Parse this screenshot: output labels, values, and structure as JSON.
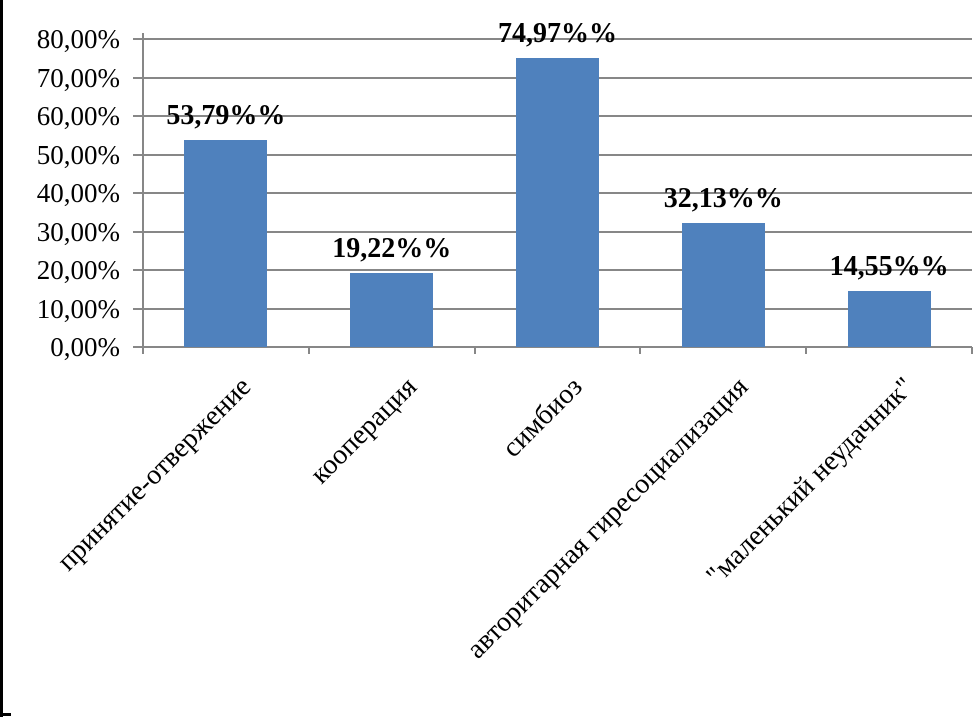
{
  "chart_data": {
    "type": "bar",
    "title": "",
    "xlabel": "",
    "ylabel": "",
    "categories": [
      "принятие-отвержение",
      "кооперация",
      "симбиоз",
      "авторитарная гиресоциализация",
      "\"маленький неудачник\""
    ],
    "values": [
      53.79,
      19.22,
      74.97,
      32.13,
      14.55
    ],
    "data_labels": [
      "53,79%%",
      "19,22%%",
      "74,97%%",
      "32,13%%",
      "14,55%%"
    ],
    "y_tick_labels": [
      "80,00%",
      "70,00%",
      "60,00%",
      "50,00%",
      "40,00%",
      "30,00%",
      "20,00%",
      "10,00%",
      "0,00%"
    ],
    "y_tick_values": [
      80,
      70,
      60,
      50,
      40,
      30,
      20,
      10,
      0
    ],
    "ylim": [
      0,
      80
    ],
    "grid": true,
    "legend": false,
    "colors": {
      "bar_fill": "#4F81BD",
      "gridline": "#878787",
      "axis": "#878787",
      "text": "#000000",
      "page_border": "#000000"
    }
  }
}
